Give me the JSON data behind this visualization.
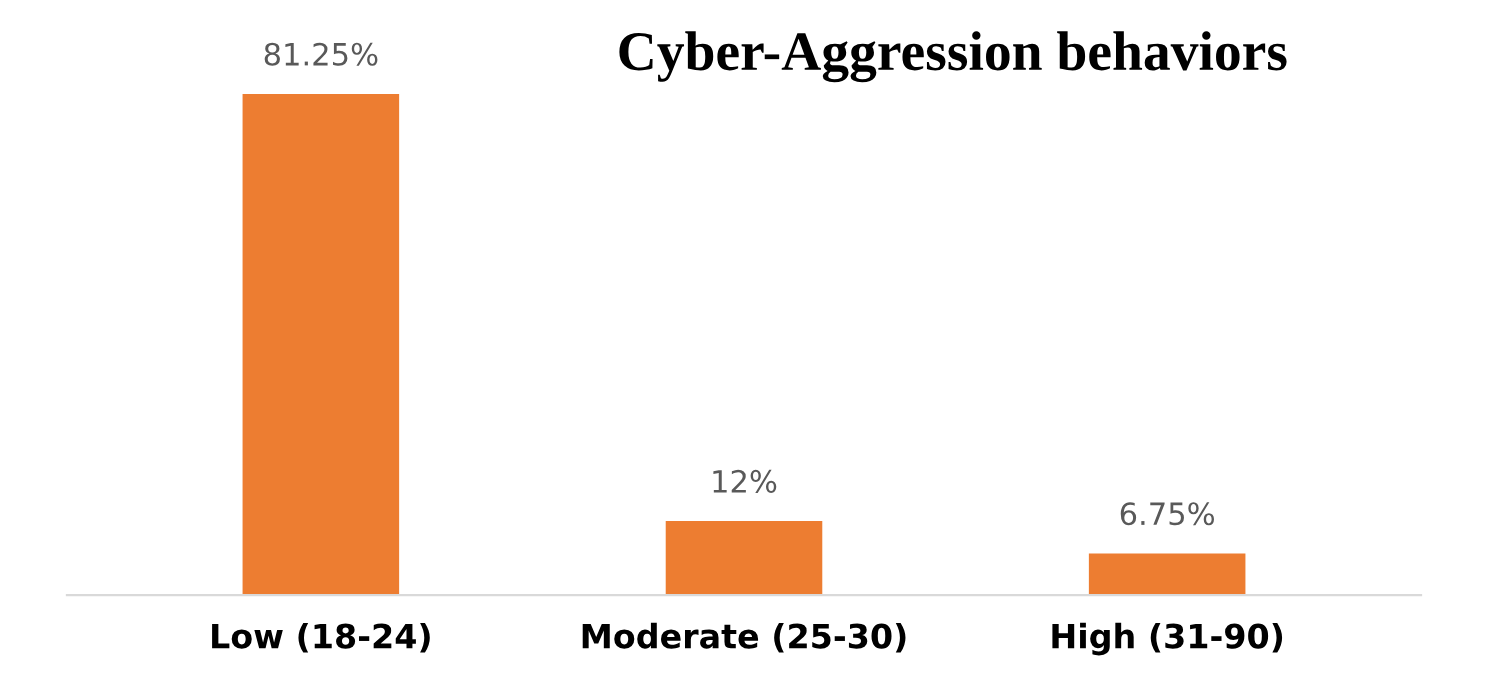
{
  "chart_data": {
    "type": "bar",
    "title": "Cyber-Aggression behaviors",
    "categories": [
      "Low (18-24)",
      "Moderate (25-30)",
      "High (31-90)"
    ],
    "values": [
      81.25,
      12,
      6.75
    ],
    "value_labels": [
      "81.25%",
      "12%",
      "6.75%"
    ],
    "color": "#ed7d31",
    "grid": false,
    "legend": false,
    "tick_labels": "x"
  }
}
